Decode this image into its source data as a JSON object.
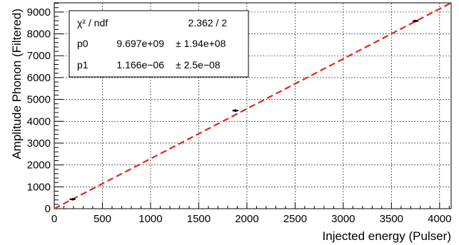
{
  "chart_data": {
    "type": "scatter",
    "xlabel": "Injected energy (Pulser)",
    "ylabel": "Amplitude Phonon (Filtered)",
    "xlim": [
      0,
      4120
    ],
    "ylim": [
      0,
      9420
    ],
    "x_ticks": [
      0,
      500,
      1000,
      1500,
      2000,
      2500,
      3000,
      3500,
      4000
    ],
    "y_ticks": [
      0,
      1000,
      2000,
      3000,
      4000,
      5000,
      6000,
      7000,
      8000,
      9000
    ],
    "grid": true,
    "series": [
      {
        "points": [
          {
            "x": 190,
            "y": 430
          },
          {
            "x": 1880,
            "y": 4490
          },
          {
            "x": 3750,
            "y": 8590
          }
        ],
        "color": "#000000"
      }
    ],
    "fit_line": {
      "color": "#e32619",
      "style": "dashed",
      "points": [
        [
          0,
          0
        ],
        [
          4120,
          9420
        ]
      ]
    },
    "stats_box": {
      "position": "top-left",
      "rows": [
        {
          "name": "χ² / ndf",
          "value": "2.362 / 2",
          "error": ""
        },
        {
          "name": "p0",
          "value": "9.697e+09",
          "error": "± 1.94e+08"
        },
        {
          "name": "p1",
          "value": "1.166e−06",
          "error": "± 2.5e−08"
        }
      ]
    }
  }
}
